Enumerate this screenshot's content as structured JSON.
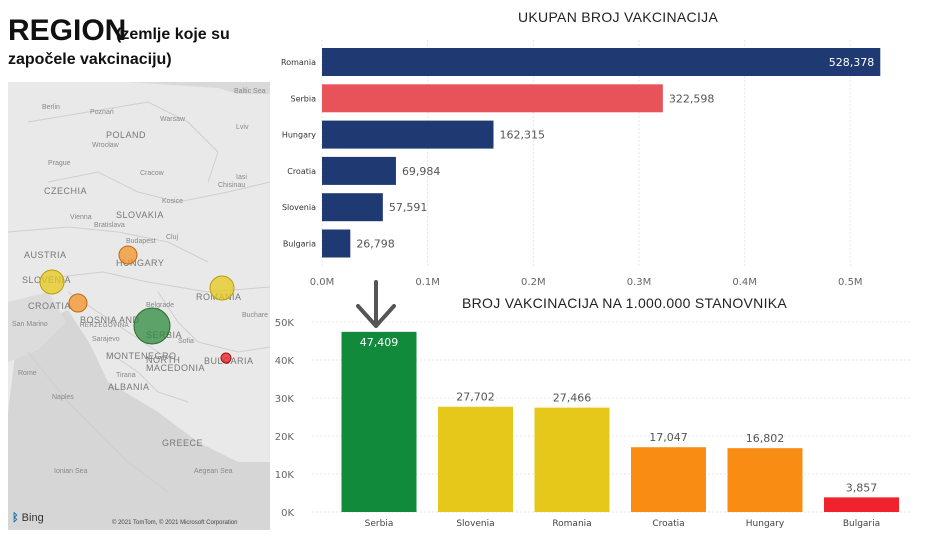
{
  "header": {
    "title": "REGION",
    "subtitle_line1": "(zemlje koje su",
    "subtitle_line2": "započele vakcinaciju)"
  },
  "map": {
    "attribution": "© 2021 TomTom, © 2021 Microsoft Corporation",
    "provider": "Bing",
    "labels": [
      "Baltic Sea",
      "Berlin",
      "Poznań",
      "POLAND",
      "Warsaw",
      "Wrocław",
      "Lviv",
      "Prague",
      "CZECHIA",
      "Cracow",
      "SLOVAKIA",
      "Vienna",
      "Bratislava",
      "AUSTRIA",
      "Budapest",
      "HUNGARY",
      "SLOVENIA",
      "CROATIA",
      "San Marino",
      "BOSNIA AND HERZEGOVINA",
      "Sarajevo",
      "MONTENEGRO",
      "Tirana",
      "ALBANIA",
      "NORTH MACEDONIA",
      "Belgrade",
      "SERBIA",
      "ROMANIA",
      "Buchare",
      "BULGARIA",
      "Rome",
      "Naples",
      "GREECE",
      "Aegean Sea",
      "Ionian Sea",
      "Sofia",
      "Chisinau",
      "Iasi",
      "Lviv",
      "Kosice",
      "Cluj"
    ],
    "bubbles": [
      {
        "country": "Serbia",
        "color": "#2e8b3e",
        "value": 47409
      },
      {
        "country": "Slovenia",
        "color": "#e6c81a",
        "value": 27702
      },
      {
        "country": "Romania",
        "color": "#e6c81a",
        "value": 27466
      },
      {
        "country": "Croatia",
        "color": "#f39228",
        "value": 17047
      },
      {
        "country": "Hungary",
        "color": "#f39228",
        "value": 16802
      },
      {
        "country": "Bulgaria",
        "color": "#e8242a",
        "value": 3857
      }
    ]
  },
  "colors": {
    "navy": "#1f3a73",
    "highlight": "#e8535a",
    "green": "#118a3c",
    "yellow": "#e6c81a",
    "orange": "#f98d14",
    "red": "#f0232d"
  },
  "chart_data": [
    {
      "type": "bar",
      "orientation": "horizontal",
      "title": "UKUPAN BROJ VAKCINACIJA",
      "categories": [
        "Romania",
        "Serbia",
        "Hungary",
        "Croatia",
        "Slovenia",
        "Bulgaria"
      ],
      "values": [
        528378,
        322598,
        162315,
        69984,
        57591,
        26798
      ],
      "value_labels": [
        "528,378",
        "322,598",
        "162,315",
        "69,984",
        "57,591",
        "26,798"
      ],
      "bar_colors": [
        "#1f3a73",
        "#e8535a",
        "#1f3a73",
        "#1f3a73",
        "#1f3a73",
        "#1f3a73"
      ],
      "xlim": [
        0,
        530000
      ],
      "ticks": [
        0,
        100000,
        200000,
        300000,
        400000,
        500000
      ],
      "tick_labels": [
        "0.0M",
        "0.1M",
        "0.2M",
        "0.3M",
        "0.4M",
        "0.5M"
      ],
      "grid": true
    },
    {
      "type": "bar",
      "orientation": "vertical",
      "title": "BROJ VAKCINACIJA NA 1.000.000 STANOVNIKA",
      "categories": [
        "Serbia",
        "Slovenia",
        "Romania",
        "Croatia",
        "Hungary",
        "Bulgaria"
      ],
      "values": [
        47409,
        27702,
        27466,
        17047,
        16802,
        3857
      ],
      "value_labels": [
        "47,409",
        "27,702",
        "27,466",
        "17,047",
        "16,802",
        "3,857"
      ],
      "bar_colors": [
        "#118a3c",
        "#e6c81a",
        "#e6c81a",
        "#f98d14",
        "#f98d14",
        "#f0232d"
      ],
      "ylim": [
        0,
        50000
      ],
      "ticks": [
        0,
        10000,
        20000,
        30000,
        40000,
        50000
      ],
      "tick_labels": [
        "0K",
        "10K",
        "20K",
        "30K",
        "40K",
        "50K"
      ],
      "grid": true
    }
  ]
}
